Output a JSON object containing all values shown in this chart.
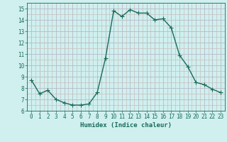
{
  "x": [
    0,
    1,
    2,
    3,
    4,
    5,
    6,
    7,
    8,
    9,
    10,
    11,
    12,
    13,
    14,
    15,
    16,
    17,
    18,
    19,
    20,
    21,
    22,
    23
  ],
  "y": [
    8.7,
    7.5,
    7.8,
    7.0,
    6.7,
    6.5,
    6.5,
    6.6,
    7.6,
    10.6,
    14.8,
    14.3,
    14.9,
    14.6,
    14.6,
    14.0,
    14.1,
    13.3,
    10.9,
    9.9,
    8.5,
    8.3,
    7.9,
    7.6
  ],
  "line_color": "#1a6b5a",
  "marker": "D",
  "marker_size": 2.0,
  "bg_color": "#cff0ee",
  "grid_major_color": "#b8b8c8",
  "grid_minor_color": "#c8bebe",
  "xlabel": "Humidex (Indice chaleur)",
  "ylim": [
    6,
    15.5
  ],
  "xlim": [
    -0.5,
    23.5
  ],
  "yticks": [
    6,
    7,
    8,
    9,
    10,
    11,
    12,
    13,
    14,
    15
  ],
  "xticks": [
    0,
    1,
    2,
    3,
    4,
    5,
    6,
    7,
    8,
    9,
    10,
    11,
    12,
    13,
    14,
    15,
    16,
    17,
    18,
    19,
    20,
    21,
    22,
    23
  ],
  "tick_color": "#1a6b5a",
  "label_fontsize": 6.5,
  "tick_fontsize": 5.5,
  "line_width": 1.0
}
